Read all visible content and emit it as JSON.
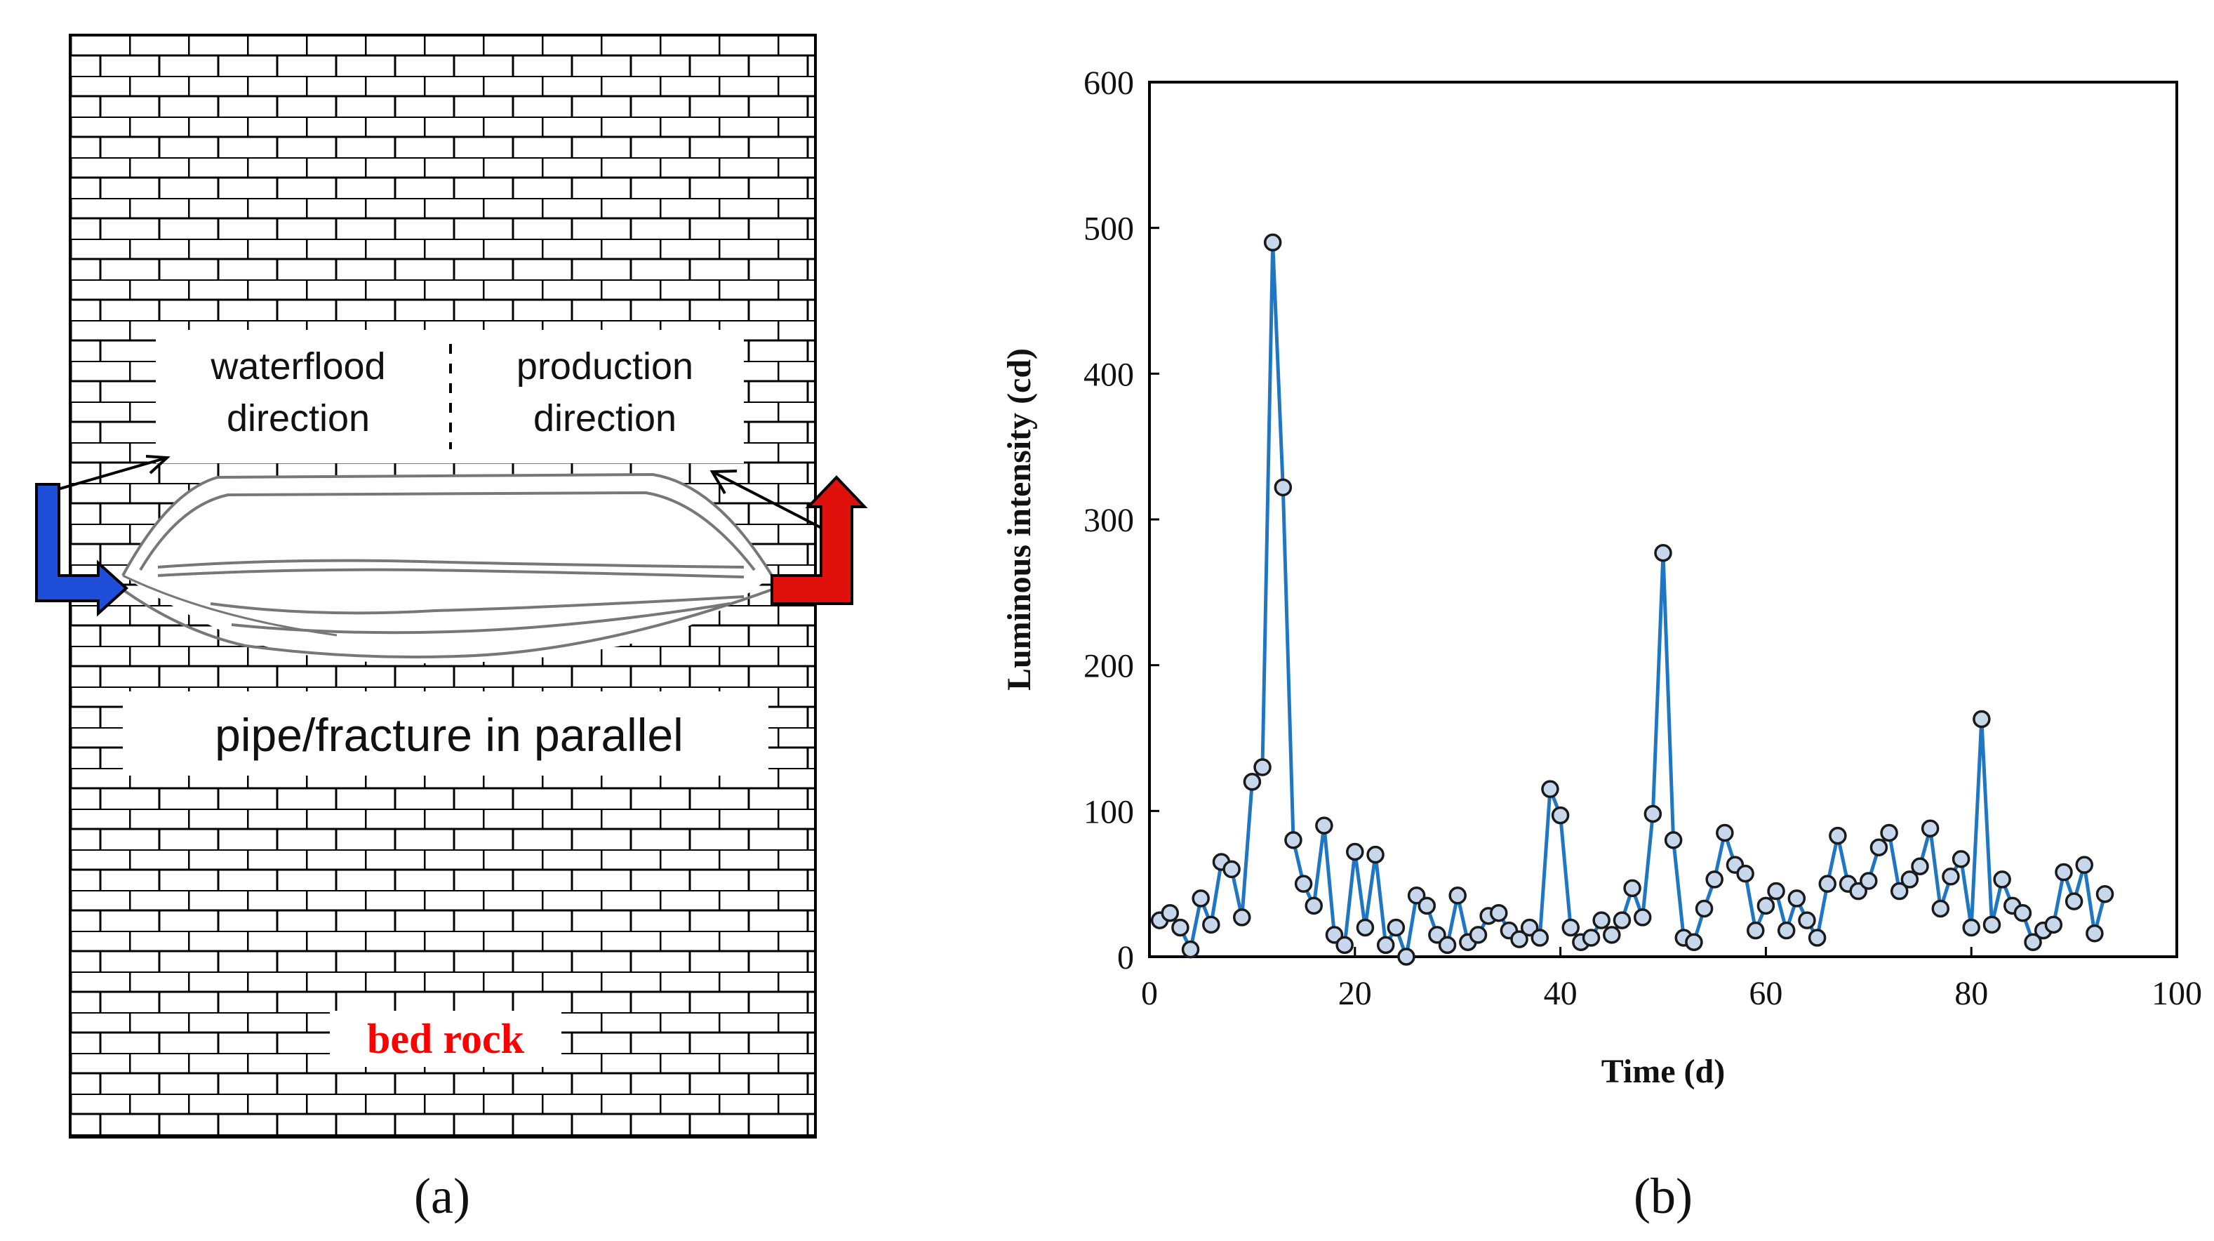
{
  "panel_a": {
    "caption": "(a)",
    "label_waterflood_line1": "waterflood",
    "label_waterflood_line2": "direction",
    "label_production_line1": "production",
    "label_production_line2": "direction",
    "label_pipe": "pipe/fracture in parallel",
    "label_bedrock": "bed rock",
    "colors": {
      "inflow_arrow": "#1f4fd8",
      "outflow_arrow": "#e0100c",
      "bedrock_text": "#ff0000",
      "brick_line": "#000000"
    }
  },
  "panel_b": {
    "caption": "(b)",
    "colors": {
      "series": "#1f77c4",
      "marker_fill": "#c7d7ec",
      "marker_edge": "#1a1a1a"
    }
  },
  "chart_data": {
    "type": "line",
    "title": "",
    "xlabel": "Time (d)",
    "ylabel": "Luminous intensity (cd)",
    "xlim": [
      0,
      100
    ],
    "ylim": [
      0,
      600
    ],
    "xticks": [
      0,
      20,
      40,
      60,
      80,
      100
    ],
    "yticks": [
      0,
      100,
      200,
      300,
      400,
      500,
      600
    ],
    "grid": false,
    "series": [
      {
        "name": "Luminous intensity",
        "marker": "circle",
        "x": [
          1,
          2,
          3,
          4,
          5,
          6,
          7,
          8,
          9,
          10,
          11,
          12,
          13,
          14,
          15,
          16,
          17,
          18,
          19,
          20,
          21,
          22,
          23,
          24,
          25,
          26,
          27,
          28,
          29,
          30,
          31,
          32,
          33,
          34,
          35,
          36,
          37,
          38,
          39,
          40,
          41,
          42,
          43,
          44,
          45,
          46,
          47,
          48,
          49,
          50,
          51,
          52,
          53,
          54,
          55,
          56,
          57,
          58,
          59,
          60,
          61,
          62,
          63,
          64,
          65,
          66,
          67,
          68,
          69,
          70,
          71,
          72,
          73,
          74,
          75,
          76,
          77,
          78,
          79,
          80,
          81,
          82,
          83,
          84,
          85,
          86,
          87,
          88,
          89,
          90,
          91,
          92,
          93
        ],
        "y": [
          25,
          30,
          20,
          5,
          40,
          22,
          65,
          60,
          27,
          120,
          130,
          490,
          322,
          80,
          50,
          35,
          90,
          15,
          8,
          72,
          20,
          70,
          8,
          20,
          0,
          42,
          35,
          15,
          8,
          42,
          10,
          15,
          28,
          30,
          18,
          12,
          20,
          13,
          115,
          97,
          20,
          10,
          13,
          25,
          15,
          25,
          47,
          27,
          98,
          277,
          80,
          13,
          10,
          33,
          53,
          85,
          63,
          57,
          18,
          35,
          45,
          18,
          40,
          25,
          13,
          50,
          83,
          50,
          45,
          52,
          75,
          85,
          45,
          53,
          62,
          88,
          33,
          55,
          67,
          20,
          163,
          22,
          53,
          35,
          30,
          10,
          18,
          22,
          58,
          38,
          63,
          16,
          43
        ]
      }
    ]
  }
}
